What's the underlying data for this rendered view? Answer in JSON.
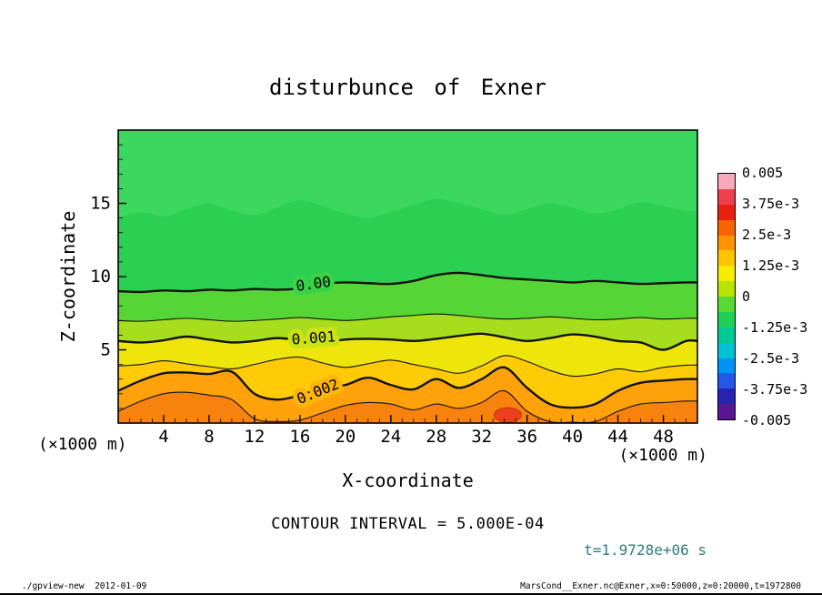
{
  "page": {
    "footer_left": "./gpview-new  2012-01-09",
    "footer_right": "MarsCond__Exner.nc@Exner,x=0:50000,z=0:20000,t=1972800"
  },
  "chart_data": {
    "type": "filled_contour",
    "title": "disturbunce of Exner",
    "xlabel": "X-coordinate",
    "ylabel": "Z-coordinate",
    "x_unit_label": "(×1000 m)",
    "z_unit_label": "(×1000 m)",
    "contour_interval_label": "CONTOUR INTERVAL = 5.000E-04",
    "time_label": "t=1.9728e+06 s",
    "xlim": [
      0,
      51
    ],
    "zlim": [
      0,
      20
    ],
    "x_ticks": [
      4,
      8,
      12,
      16,
      20,
      24,
      28,
      32,
      36,
      40,
      44,
      48
    ],
    "z_ticks": [
      5,
      10,
      15
    ],
    "contour_interval": 0.0005,
    "grid": false,
    "colorbar": {
      "position": "right",
      "labels": [
        "0.005",
        "3.75e-3",
        "2.5e-3",
        "1.25e-3",
        "0",
        "-1.25e-3",
        "-2.5e-3",
        "-3.75e-3",
        "-0.005"
      ],
      "values": [
        0.005,
        0.00375,
        0.0025,
        0.00125,
        0,
        -0.00125,
        -0.0025,
        -0.00375,
        -0.005
      ],
      "colors": [
        "#f9a8bb",
        "#ec4050",
        "#e82012",
        "#fa6400",
        "#ff9400",
        "#ffc400",
        "#f6ec00",
        "#b8e400",
        "#5ad834",
        "#1fcf55",
        "#00c896",
        "#00c2d6",
        "#0092f4",
        "#2358e8",
        "#2a22b0",
        "#5a1690"
      ]
    },
    "field": {
      "x_samples": [
        0,
        2,
        4,
        6,
        8,
        10,
        12,
        14,
        16,
        18,
        20,
        22,
        24,
        26,
        28,
        30,
        32,
        34,
        36,
        38,
        40,
        42,
        44,
        46,
        48,
        50
      ],
      "base_color": "#2bcf51",
      "light_patch": {
        "color": "#3bd75e",
        "z": [
          14.0,
          14.4,
          14.1,
          14.6,
          15.0,
          14.5,
          14.2,
          14.7,
          15.2,
          14.8,
          14.3,
          14.0,
          14.4,
          14.9,
          15.3,
          15.0,
          14.6,
          14.2,
          14.6,
          15.0,
          14.7,
          14.3,
          14.6,
          15.1,
          14.8,
          14.5
        ]
      },
      "bands": [
        {
          "level": 0.0,
          "line": "thick",
          "color_below": "#55d636",
          "z": [
            9.0,
            8.95,
            9.05,
            9.0,
            9.1,
            9.05,
            9.15,
            9.1,
            9.2,
            9.5,
            9.6,
            9.55,
            9.5,
            9.7,
            10.1,
            10.25,
            10.1,
            9.9,
            9.8,
            9.7,
            9.6,
            9.7,
            9.6,
            9.5,
            9.55,
            9.6
          ]
        },
        {
          "level": 0.0005,
          "line": "thin",
          "color_below": "#a6dd1c",
          "z": [
            7.0,
            6.95,
            7.05,
            7.15,
            7.05,
            6.95,
            7.0,
            7.1,
            7.2,
            7.1,
            7.0,
            7.1,
            7.25,
            7.35,
            7.45,
            7.35,
            7.2,
            7.1,
            7.15,
            7.25,
            7.15,
            7.05,
            7.1,
            7.2,
            7.1,
            7.15
          ]
        },
        {
          "level": 0.001,
          "line": "thick",
          "color_below": "#eee60a",
          "z": [
            5.6,
            5.5,
            5.65,
            5.9,
            5.7,
            5.5,
            5.6,
            5.8,
            5.65,
            5.5,
            5.7,
            5.75,
            5.7,
            5.6,
            5.75,
            5.95,
            6.1,
            5.85,
            5.6,
            5.8,
            6.05,
            5.9,
            5.6,
            5.5,
            5.0,
            5.6
          ]
        },
        {
          "level": 0.0015,
          "line": "thin",
          "color_below": "#ffcb06",
          "z": [
            3.9,
            4.0,
            4.25,
            4.05,
            3.85,
            3.7,
            4.0,
            4.35,
            4.5,
            4.1,
            3.8,
            4.05,
            4.3,
            4.0,
            3.7,
            3.4,
            3.9,
            4.6,
            4.2,
            3.6,
            3.2,
            3.35,
            3.7,
            3.5,
            3.8,
            3.95
          ]
        },
        {
          "level": 0.002,
          "line": "thick",
          "color_below": "#ffa10a",
          "z": [
            2.2,
            2.9,
            3.4,
            3.45,
            3.35,
            3.5,
            2.0,
            1.6,
            1.9,
            2.4,
            2.6,
            3.1,
            2.6,
            2.3,
            3.0,
            2.4,
            3.0,
            3.8,
            2.4,
            1.3,
            1.05,
            1.3,
            2.2,
            2.75,
            2.9,
            3.0
          ]
        },
        {
          "level": 0.0025,
          "line": "thin",
          "color_below": "#f8820e",
          "z": [
            0.8,
            1.5,
            2.0,
            2.1,
            1.9,
            1.6,
            0.3,
            0.1,
            0.2,
            0.7,
            1.2,
            1.4,
            1.3,
            0.9,
            1.3,
            1.0,
            1.4,
            2.2,
            0.8,
            0.1,
            0.05,
            0.1,
            0.8,
            1.3,
            1.4,
            1.5
          ]
        }
      ],
      "hot_spot": {
        "x": 34.3,
        "z": 0.55,
        "rx": 1.2,
        "rz": 0.5,
        "fill": "#e8411c",
        "stroke": "#c93312"
      },
      "contour_labels": [
        {
          "text": "0.00",
          "x": 17.2,
          "z": 9.45,
          "rot": -8,
          "halo": "#3ad348"
        },
        {
          "text": "0.001",
          "x": 17.2,
          "z": 5.75,
          "rot": -4,
          "halo": "#cbe214"
        },
        {
          "text": "0.002",
          "x": 17.6,
          "z": 2.1,
          "rot": -22,
          "halo": "#ffb408"
        }
      ]
    }
  }
}
